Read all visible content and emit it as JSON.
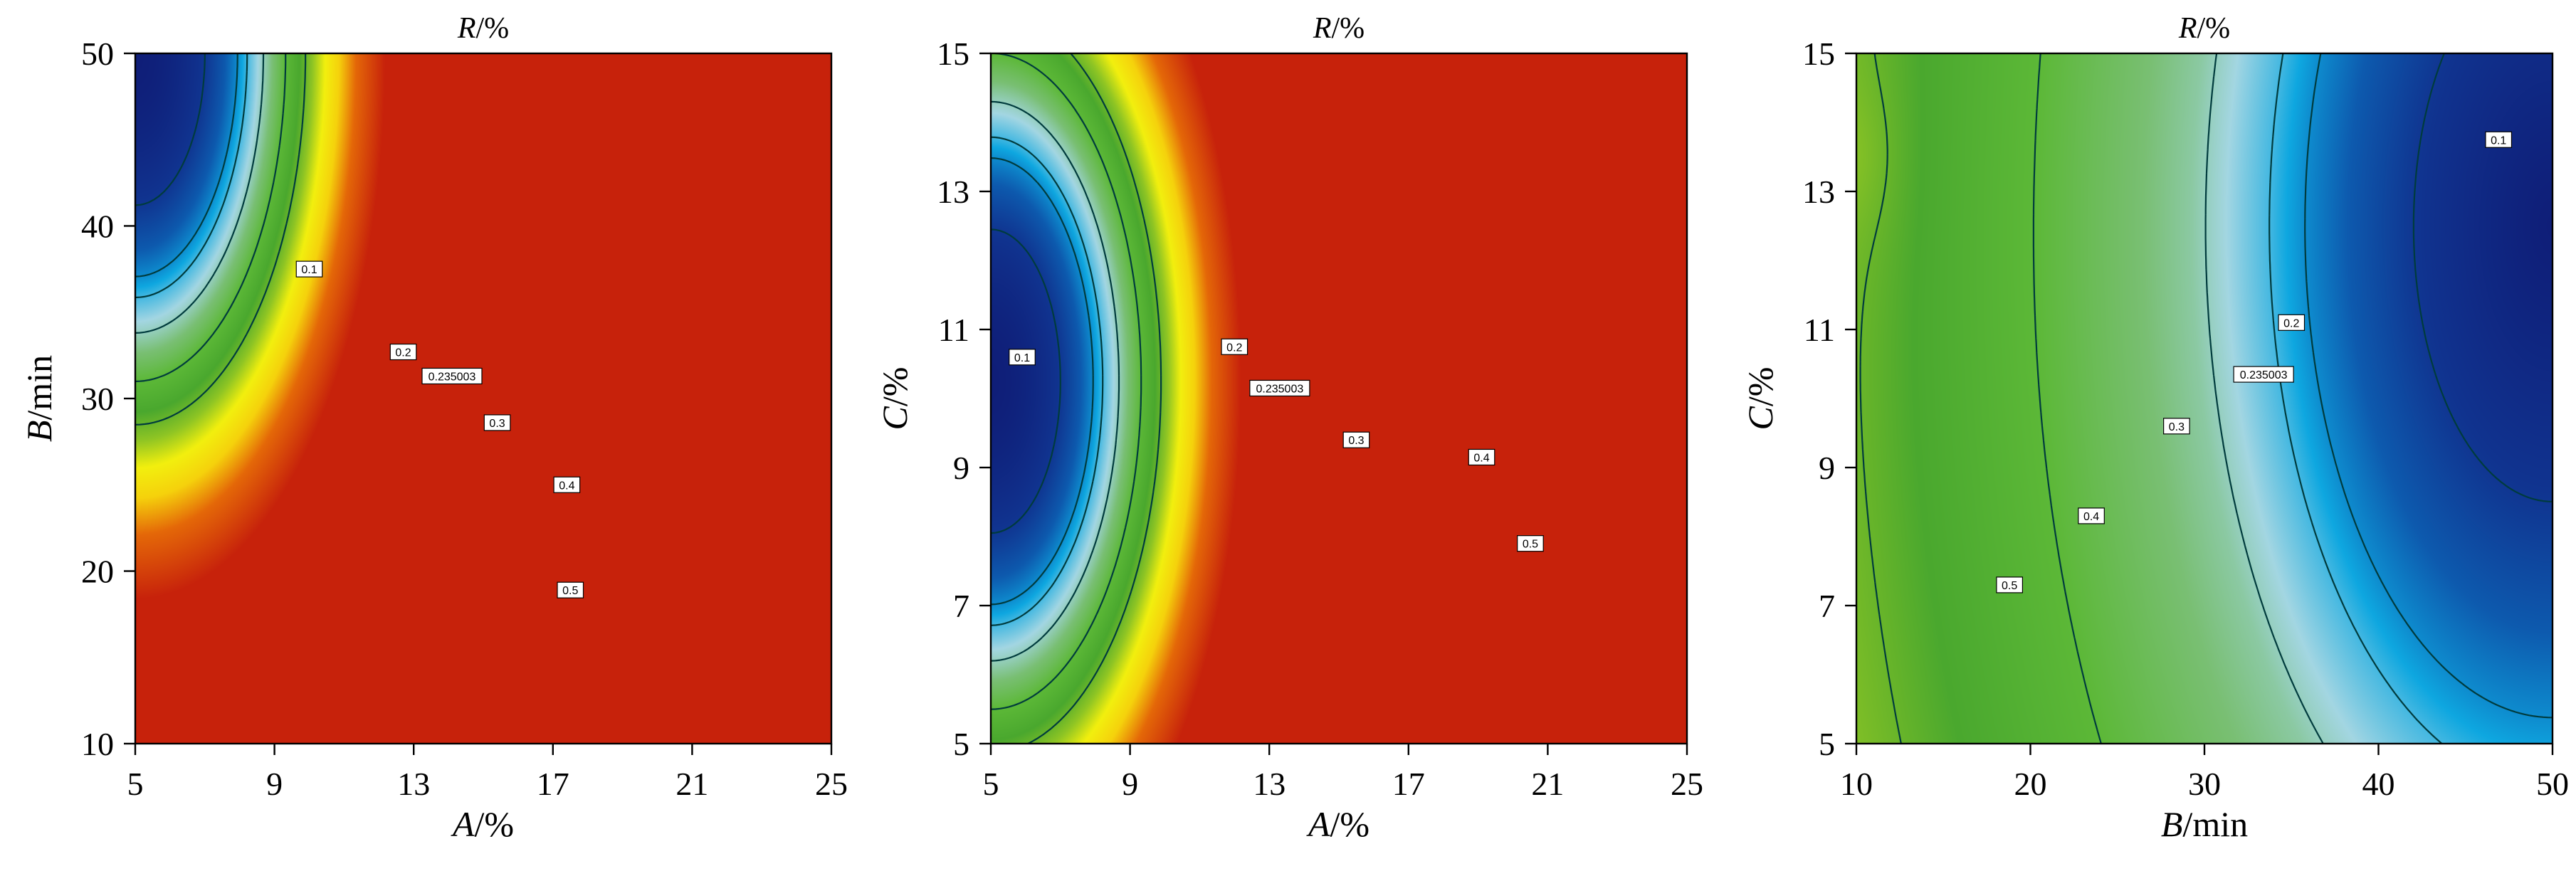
{
  "chart_data": [
    {
      "type": "heatmap",
      "title_var": "R",
      "title_unit": "/%",
      "x_var": "A",
      "x_unit": "/%",
      "y_var": "B",
      "y_unit": "/min",
      "xlim": [
        5,
        25
      ],
      "ylim": [
        10,
        50
      ],
      "x_ticks": [
        "5",
        "9",
        "13",
        "17",
        "21",
        "25"
      ],
      "y_ticks": [
        "10",
        "20",
        "30",
        "40",
        "50"
      ],
      "model": {
        "type": "ellipse",
        "center": [
          5,
          50
        ],
        "rx": 0.1,
        "ry": 0.22,
        "k": 1.8,
        "phase": 0.0
      },
      "contour_levels": [
        {
          "value": 0.1,
          "label": "0.1",
          "at": [
            10,
            37.5
          ]
        },
        {
          "value": 0.2,
          "label": "0.2",
          "at": [
            12.7,
            32.7
          ]
        },
        {
          "value": 0.235003,
          "label": "0.235003",
          "at": [
            14.1,
            31.3
          ]
        },
        {
          "value": 0.3,
          "label": "0.3",
          "at": [
            15.4,
            28.6
          ]
        },
        {
          "value": 0.4,
          "label": "0.4",
          "at": [
            17.4,
            25
          ]
        },
        {
          "value": 0.5,
          "label": "0.5",
          "at": [
            17.5,
            18.9
          ]
        }
      ]
    },
    {
      "type": "heatmap",
      "title_var": "R",
      "title_unit": "/%",
      "x_var": "A",
      "x_unit": "/%",
      "y_var": "C",
      "y_unit": "/%",
      "xlim": [
        5,
        25
      ],
      "ylim": [
        5,
        15
      ],
      "x_ticks": [
        "5",
        "9",
        "13",
        "17",
        "21",
        "25"
      ],
      "y_ticks": [
        "5",
        "7",
        "9",
        "11",
        "13",
        "15"
      ],
      "model": {
        "type": "ellipse",
        "center": [
          5,
          10.25
        ],
        "rx": 0.1,
        "ry": 0.22,
        "k": 1.8,
        "phase": 0.0
      },
      "contour_levels": [
        {
          "value": 0.1,
          "label": "0.1",
          "at": [
            5.9,
            10.6
          ]
        },
        {
          "value": 0.2,
          "label": "0.2",
          "at": [
            12,
            10.75
          ]
        },
        {
          "value": 0.235003,
          "label": "0.235003",
          "at": [
            13.3,
            10.15
          ]
        },
        {
          "value": 0.3,
          "label": "0.3",
          "at": [
            15.5,
            9.4
          ]
        },
        {
          "value": 0.4,
          "label": "0.4",
          "at": [
            19.1,
            9.15
          ]
        },
        {
          "value": 0.5,
          "label": "0.5",
          "at": [
            20.5,
            7.9
          ]
        }
      ]
    },
    {
      "type": "heatmap",
      "title_var": "R",
      "title_unit": "/%",
      "x_var": "B",
      "x_unit": "/min",
      "y_var": "C",
      "y_unit": "/%",
      "xlim": [
        10,
        50
      ],
      "ylim": [
        5,
        15
      ],
      "x_ticks": [
        "10",
        "20",
        "30",
        "40",
        "50"
      ],
      "y_ticks": [
        "5",
        "7",
        "9",
        "11",
        "13",
        "15"
      ],
      "model": {
        "type": "horseshoe",
        "center": [
          50,
          12.5
        ],
        "d_rx": 0.2,
        "d_ry": 0.4,
        "cup_x": 10,
        "cup_y": 13.5,
        "cup_k": 0.00158,
        "k": 1.2,
        "phase": 1.6
      },
      "contour_levels": [
        {
          "value": 0.1,
          "label": "0.1",
          "at": [
            46.9,
            13.75
          ]
        },
        {
          "value": 0.2,
          "label": "0.2",
          "at": [
            35,
            11.1
          ]
        },
        {
          "value": 0.235003,
          "label": "0.235003",
          "at": [
            33.4,
            10.35
          ]
        },
        {
          "value": 0.3,
          "label": "0.3",
          "at": [
            28.4,
            9.6
          ]
        },
        {
          "value": 0.4,
          "label": "0.4",
          "at": [
            23.5,
            8.3
          ]
        },
        {
          "value": 0.5,
          "label": "0.5",
          "at": [
            18.8,
            7.3
          ]
        }
      ]
    }
  ],
  "colors": {
    "stops": [
      "#0f1e78",
      "#10338f",
      "#0d5aae",
      "#0ea7e0",
      "#a3d6e2",
      "#79bf73",
      "#5cb837",
      "#4aa82e",
      "#8fc524",
      "#f2ef0e",
      "#f5d10c",
      "#e56a08",
      "#c7220b"
    ],
    "contour": "#003b3d"
  }
}
